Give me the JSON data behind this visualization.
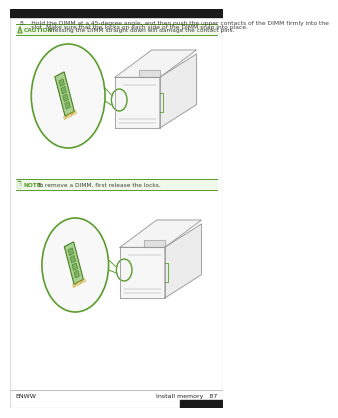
{
  "bg_color": "#ffffff",
  "border_color": "#cccccc",
  "green_color": "#5a9c2e",
  "caution_bg": "#f0f8ea",
  "note_bg": "#f0f8ea",
  "text_color": "#404040",
  "dark_color": "#202020",
  "printer_color": "#bbbbbb",
  "printer_edge": "#999999",
  "dimm_fill": "#a8d090",
  "dimm_edge": "#4a8020",
  "step_text_line1": "8.   Hold the DIMM at a 45-degree angle, and then push the upper contacts of the DIMM firmly into the",
  "step_text_line2": "      slot. Make sure that the locks on each side of the DIMM snap into place.",
  "caution_label": "CAUTION:",
  "caution_text": "Pressing the DIMM straight down will damage the contact pins.",
  "note_label": "NOTE:",
  "note_text": "To remove a DIMM, first release the locks.",
  "footer_left": "ENWW",
  "footer_right": "Install memory   87",
  "top_bar_color": "#1a1a1a",
  "bottom_bar_color": "#1a1a1a",
  "page_margin_color": "#e0e0e0"
}
